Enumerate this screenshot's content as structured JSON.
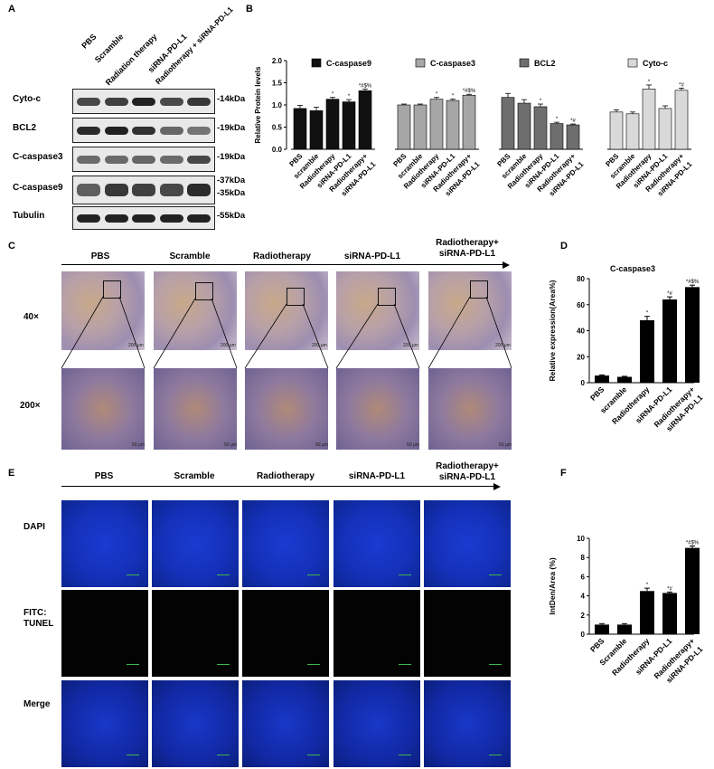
{
  "panels": {
    "A": "A",
    "B": "B",
    "C": "C",
    "D": "D",
    "E": "E",
    "F": "F"
  },
  "western": {
    "lanes": [
      "PBS",
      "Scramble",
      "Radiation therapy",
      "siRNA-PD-L1",
      "Radiotherapy + siRNA-PD-L1"
    ],
    "blots": [
      {
        "name": "Cyto-c",
        "mw": "-14kDa",
        "intensity": [
          0.75,
          0.8,
          1.0,
          0.75,
          0.85
        ]
      },
      {
        "name": "BCL2",
        "mw": "-19kDa",
        "intensity": [
          0.95,
          1.0,
          0.9,
          0.55,
          0.45
        ]
      },
      {
        "name": "C-caspase3",
        "mw": "-19kDa",
        "intensity": [
          0.5,
          0.5,
          0.55,
          0.5,
          0.75
        ]
      },
      {
        "name": "C-caspase9",
        "mw": "-37kDa",
        "mw2": "-35kDa",
        "intensity": [
          0.6,
          0.85,
          0.8,
          0.75,
          0.95
        ]
      },
      {
        "name": "Tubulin",
        "mw": "-55kDa",
        "intensity": [
          1.0,
          1.0,
          1.0,
          1.0,
          1.0
        ]
      }
    ]
  },
  "ihc": {
    "groups": [
      "PBS",
      "Scramble",
      "Radiotherapy",
      "siRNA-PD-L1",
      "Radiotherapy+\nsiRNA-PD-L1"
    ],
    "rows": [
      "40×",
      "200×"
    ],
    "scalebar_40": "200 μm",
    "scalebar_200": "50 μm"
  },
  "tunel": {
    "groups": [
      "PBS",
      "Scramble",
      "Radiotherapy",
      "siRNA-PD-L1",
      "Radiotherapy+\nsiRNA-PD-L1"
    ],
    "rows": [
      "DAPI",
      "FITC:\nTUNEL",
      "Merge"
    ]
  },
  "colors": {
    "caspase9": "#111111",
    "caspase3": "#a6a6a6",
    "bcl2": "#6e6e6e",
    "cytoc": "#d9d9d9",
    "bar_black": "#000000"
  },
  "chart_data": [
    {
      "id": "B",
      "type": "bar",
      "ylabel": "Relative Protein levels",
      "ylim": [
        0,
        2.0
      ],
      "yticks": [
        0.0,
        0.5,
        1.0,
        1.5,
        2.0
      ],
      "categories": [
        "PBS",
        "scramble",
        "Radiotherapy",
        "siRNA-PD-L1",
        "Radiotherapy+\nsiRNA-PD-L1"
      ],
      "series": [
        {
          "name": "C-caspase9",
          "values": [
            0.92,
            0.87,
            1.13,
            1.07,
            1.32
          ],
          "errors": [
            0.07,
            0.08,
            0.04,
            0.05,
            0.04
          ],
          "annotations": [
            "",
            "",
            "*",
            "*",
            "*#$%"
          ]
        },
        {
          "name": "C-caspase3",
          "values": [
            1.0,
            1.0,
            1.13,
            1.1,
            1.22
          ],
          "errors": [
            0.02,
            0.02,
            0.04,
            0.03,
            0.02
          ],
          "annotations": [
            "",
            "",
            "*",
            "*",
            "*#$%"
          ]
        },
        {
          "name": "BCL2",
          "values": [
            1.17,
            1.04,
            0.96,
            0.58,
            0.55
          ],
          "errors": [
            0.09,
            0.08,
            0.06,
            0.03,
            0.02
          ],
          "annotations": [
            "",
            "",
            "*",
            "*",
            "*#"
          ]
        },
        {
          "name": "Cyto-c",
          "values": [
            0.84,
            0.8,
            1.36,
            0.92,
            1.33
          ],
          "errors": [
            0.05,
            0.04,
            0.09,
            0.06,
            0.05
          ],
          "annotations": [
            "",
            "",
            "*",
            "",
            "*#"
          ]
        }
      ]
    },
    {
      "id": "D",
      "type": "bar",
      "title": "C-caspase3",
      "ylabel": "Relative expression(Area%)",
      "ylim": [
        0,
        80
      ],
      "yticks": [
        0,
        20,
        40,
        60,
        80
      ],
      "categories": [
        "PBS",
        "scramble",
        "Radiotherapy",
        "siRNA-PD-L1",
        "Radiotherapy+\nsiRNA-PD-L1"
      ],
      "values": [
        5.5,
        4.5,
        48,
        64,
        73.5
      ],
      "errors": [
        0.5,
        0.4,
        3,
        2,
        1.5
      ],
      "annotations": [
        "",
        "",
        "*",
        "*#",
        "*#$%"
      ]
    },
    {
      "id": "F",
      "type": "bar",
      "ylabel": "IntDen/Area (%)",
      "ylim": [
        0,
        10
      ],
      "yticks": [
        0,
        2,
        4,
        6,
        8,
        10
      ],
      "categories": [
        "PBS",
        "Scramble",
        "Radiotherapy",
        "siRNA-PD-L1",
        "Radiotherapy+\nsiRNA-PD-L1"
      ],
      "values": [
        1.0,
        1.0,
        4.5,
        4.3,
        9.0
      ],
      "errors": [
        0.1,
        0.1,
        0.3,
        0.1,
        0.2
      ],
      "annotations": [
        "",
        "",
        "*",
        "*#",
        "*#$%"
      ]
    }
  ]
}
